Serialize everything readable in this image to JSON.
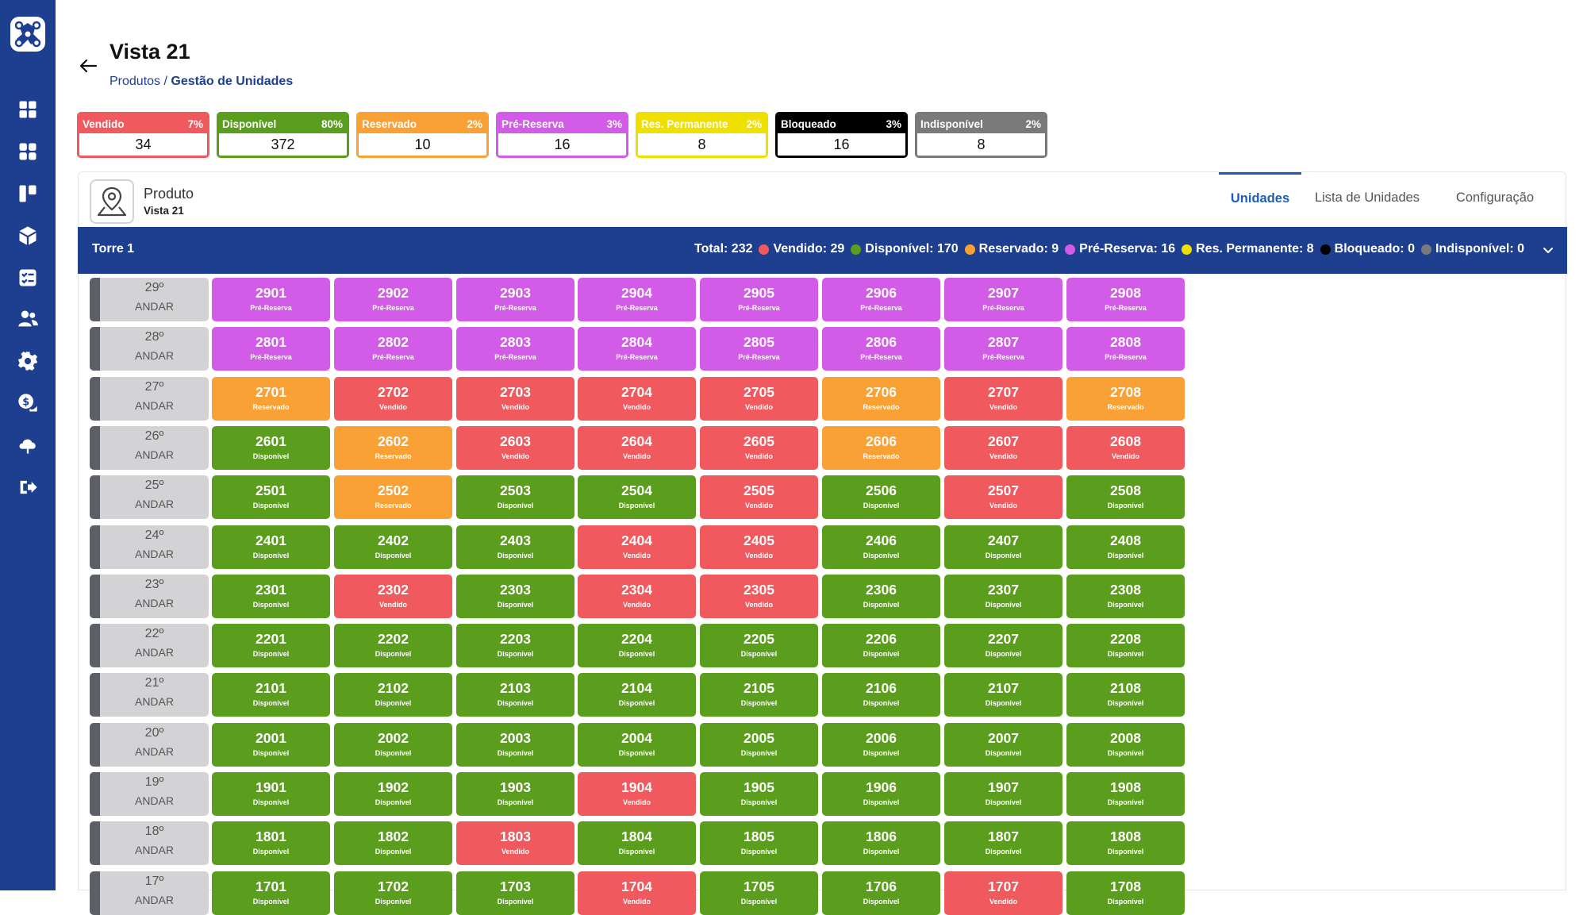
{
  "sidebar": {
    "items": [
      {
        "icon": "dashboard-icon"
      },
      {
        "icon": "grid-icon"
      },
      {
        "icon": "kanban-icon"
      },
      {
        "icon": "box-icon"
      },
      {
        "icon": "checklist-icon"
      },
      {
        "icon": "users-icon"
      },
      {
        "icon": "gear-icon"
      },
      {
        "icon": "money-icon"
      },
      {
        "icon": "cloud-icon"
      },
      {
        "icon": "logout-icon"
      }
    ]
  },
  "header": {
    "title": "Vista 21",
    "breadcrumb": {
      "link": "Produtos",
      "separator": " / ",
      "current": "Gestão de Unidades"
    }
  },
  "stat_cards": [
    {
      "label": "Vendido",
      "percent": "7%",
      "value": "34",
      "color": "#f05a5e"
    },
    {
      "label": "Disponível",
      "percent": "80%",
      "value": "372",
      "color": "#5b9e1e"
    },
    {
      "label": "Reservado",
      "percent": "2%",
      "value": "10",
      "color": "#f9a134"
    },
    {
      "label": "Pré-Reserva",
      "percent": "3%",
      "value": "16",
      "color": "#d25ce8"
    },
    {
      "label": "Res. Permanente",
      "percent": "2%",
      "value": "8",
      "color": "#f0e000"
    },
    {
      "label": "Bloqueado",
      "percent": "3%",
      "value": "16",
      "color": "#000000"
    },
    {
      "label": "Indisponível",
      "percent": "2%",
      "value": "8",
      "color": "#7a7a7a"
    }
  ],
  "product": {
    "label": "Produto",
    "name": "Vista 21"
  },
  "tabs": [
    {
      "label": "Unidades",
      "active": true
    },
    {
      "label": "Lista de Unidades",
      "active": false
    },
    {
      "label": "Configuração",
      "active": false
    }
  ],
  "tower": {
    "name": "Torre 1",
    "total": "Total: 232",
    "stats": [
      {
        "text": "Vendido: 29",
        "color": "#f05a5e"
      },
      {
        "text": "Disponível: 170",
        "color": "#5b9e1e"
      },
      {
        "text": "Reservado: 9",
        "color": "#f9a134"
      },
      {
        "text": "Pré-Reserva: 16",
        "color": "#d25ce8"
      },
      {
        "text": "Res. Permanente: 8",
        "color": "#f0e000"
      },
      {
        "text": "Bloqueado: 0",
        "color": "#000000"
      },
      {
        "text": "Indisponível: 0",
        "color": "#7a7a7a"
      }
    ]
  },
  "status_colors": {
    "Vendido": "#f05a5e",
    "Disponível": "#5b9e1e",
    "Reservado": "#f9a134",
    "Pré-Reserva": "#d25ce8"
  },
  "floor_word": "ANDAR",
  "floors": [
    {
      "floor": "29º",
      "units": [
        {
          "number": "2901",
          "status": "Pré-Reserva"
        },
        {
          "number": "2902",
          "status": "Pré-Reserva"
        },
        {
          "number": "2903",
          "status": "Pré-Reserva"
        },
        {
          "number": "2904",
          "status": "Pré-Reserva"
        },
        {
          "number": "2905",
          "status": "Pré-Reserva"
        },
        {
          "number": "2906",
          "status": "Pré-Reserva"
        },
        {
          "number": "2907",
          "status": "Pré-Reserva"
        },
        {
          "number": "2908",
          "status": "Pré-Reserva"
        }
      ]
    },
    {
      "floor": "28º",
      "units": [
        {
          "number": "2801",
          "status": "Pré-Reserva"
        },
        {
          "number": "2802",
          "status": "Pré-Reserva"
        },
        {
          "number": "2803",
          "status": "Pré-Reserva"
        },
        {
          "number": "2804",
          "status": "Pré-Reserva"
        },
        {
          "number": "2805",
          "status": "Pré-Reserva"
        },
        {
          "number": "2806",
          "status": "Pré-Reserva"
        },
        {
          "number": "2807",
          "status": "Pré-Reserva"
        },
        {
          "number": "2808",
          "status": "Pré-Reserva"
        }
      ]
    },
    {
      "floor": "27º",
      "units": [
        {
          "number": "2701",
          "status": "Reservado"
        },
        {
          "number": "2702",
          "status": "Vendido"
        },
        {
          "number": "2703",
          "status": "Vendido"
        },
        {
          "number": "2704",
          "status": "Vendido"
        },
        {
          "number": "2705",
          "status": "Vendido"
        },
        {
          "number": "2706",
          "status": "Reservado"
        },
        {
          "number": "2707",
          "status": "Vendido"
        },
        {
          "number": "2708",
          "status": "Reservado"
        }
      ]
    },
    {
      "floor": "26º",
      "units": [
        {
          "number": "2601",
          "status": "Disponível"
        },
        {
          "number": "2602",
          "status": "Reservado"
        },
        {
          "number": "2603",
          "status": "Vendido"
        },
        {
          "number": "2604",
          "status": "Vendido"
        },
        {
          "number": "2605",
          "status": "Vendido"
        },
        {
          "number": "2606",
          "status": "Reservado"
        },
        {
          "number": "2607",
          "status": "Vendido"
        },
        {
          "number": "2608",
          "status": "Vendido"
        }
      ]
    },
    {
      "floor": "25º",
      "units": [
        {
          "number": "2501",
          "status": "Disponível"
        },
        {
          "number": "2502",
          "status": "Reservado"
        },
        {
          "number": "2503",
          "status": "Disponível"
        },
        {
          "number": "2504",
          "status": "Disponível"
        },
        {
          "number": "2505",
          "status": "Vendido"
        },
        {
          "number": "2506",
          "status": "Disponível"
        },
        {
          "number": "2507",
          "status": "Vendido"
        },
        {
          "number": "2508",
          "status": "Disponível"
        }
      ]
    },
    {
      "floor": "24º",
      "units": [
        {
          "number": "2401",
          "status": "Disponível"
        },
        {
          "number": "2402",
          "status": "Disponível"
        },
        {
          "number": "2403",
          "status": "Disponível"
        },
        {
          "number": "2404",
          "status": "Vendido"
        },
        {
          "number": "2405",
          "status": "Vendido"
        },
        {
          "number": "2406",
          "status": "Disponível"
        },
        {
          "number": "2407",
          "status": "Disponível"
        },
        {
          "number": "2408",
          "status": "Disponível"
        }
      ]
    },
    {
      "floor": "23º",
      "units": [
        {
          "number": "2301",
          "status": "Disponível"
        },
        {
          "number": "2302",
          "status": "Vendido"
        },
        {
          "number": "2303",
          "status": "Disponível"
        },
        {
          "number": "2304",
          "status": "Vendido"
        },
        {
          "number": "2305",
          "status": "Vendido"
        },
        {
          "number": "2306",
          "status": "Disponível"
        },
        {
          "number": "2307",
          "status": "Disponível"
        },
        {
          "number": "2308",
          "status": "Disponível"
        }
      ]
    },
    {
      "floor": "22º",
      "units": [
        {
          "number": "2201",
          "status": "Disponível"
        },
        {
          "number": "2202",
          "status": "Disponível"
        },
        {
          "number": "2203",
          "status": "Disponível"
        },
        {
          "number": "2204",
          "status": "Disponível"
        },
        {
          "number": "2205",
          "status": "Disponível"
        },
        {
          "number": "2206",
          "status": "Disponível"
        },
        {
          "number": "2207",
          "status": "Disponível"
        },
        {
          "number": "2208",
          "status": "Disponível"
        }
      ]
    },
    {
      "floor": "21º",
      "units": [
        {
          "number": "2101",
          "status": "Disponível"
        },
        {
          "number": "2102",
          "status": "Disponível"
        },
        {
          "number": "2103",
          "status": "Disponível"
        },
        {
          "number": "2104",
          "status": "Disponível"
        },
        {
          "number": "2105",
          "status": "Disponível"
        },
        {
          "number": "2106",
          "status": "Disponível"
        },
        {
          "number": "2107",
          "status": "Disponível"
        },
        {
          "number": "2108",
          "status": "Disponível"
        }
      ]
    },
    {
      "floor": "20º",
      "units": [
        {
          "number": "2001",
          "status": "Disponível"
        },
        {
          "number": "2002",
          "status": "Disponível"
        },
        {
          "number": "2003",
          "status": "Disponível"
        },
        {
          "number": "2004",
          "status": "Disponível"
        },
        {
          "number": "2005",
          "status": "Disponível"
        },
        {
          "number": "2006",
          "status": "Disponível"
        },
        {
          "number": "2007",
          "status": "Disponível"
        },
        {
          "number": "2008",
          "status": "Disponível"
        }
      ]
    },
    {
      "floor": "19º",
      "units": [
        {
          "number": "1901",
          "status": "Disponível"
        },
        {
          "number": "1902",
          "status": "Disponível"
        },
        {
          "number": "1903",
          "status": "Disponível"
        },
        {
          "number": "1904",
          "status": "Vendido"
        },
        {
          "number": "1905",
          "status": "Disponível"
        },
        {
          "number": "1906",
          "status": "Disponível"
        },
        {
          "number": "1907",
          "status": "Disponível"
        },
        {
          "number": "1908",
          "status": "Disponível"
        }
      ]
    },
    {
      "floor": "18º",
      "units": [
        {
          "number": "1801",
          "status": "Disponível"
        },
        {
          "number": "1802",
          "status": "Disponível"
        },
        {
          "number": "1803",
          "status": "Vendido"
        },
        {
          "number": "1804",
          "status": "Disponível"
        },
        {
          "number": "1805",
          "status": "Disponível"
        },
        {
          "number": "1806",
          "status": "Disponível"
        },
        {
          "number": "1807",
          "status": "Disponível"
        },
        {
          "number": "1808",
          "status": "Disponível"
        }
      ]
    },
    {
      "floor": "17º",
      "units": [
        {
          "number": "1701",
          "status": "Disponível"
        },
        {
          "number": "1702",
          "status": "Disponível"
        },
        {
          "number": "1703",
          "status": "Disponível"
        },
        {
          "number": "1704",
          "status": "Vendido"
        },
        {
          "number": "1705",
          "status": "Disponível"
        },
        {
          "number": "1706",
          "status": "Disponível"
        },
        {
          "number": "1707",
          "status": "Vendido"
        },
        {
          "number": "1708",
          "status": "Disponível"
        }
      ]
    }
  ]
}
